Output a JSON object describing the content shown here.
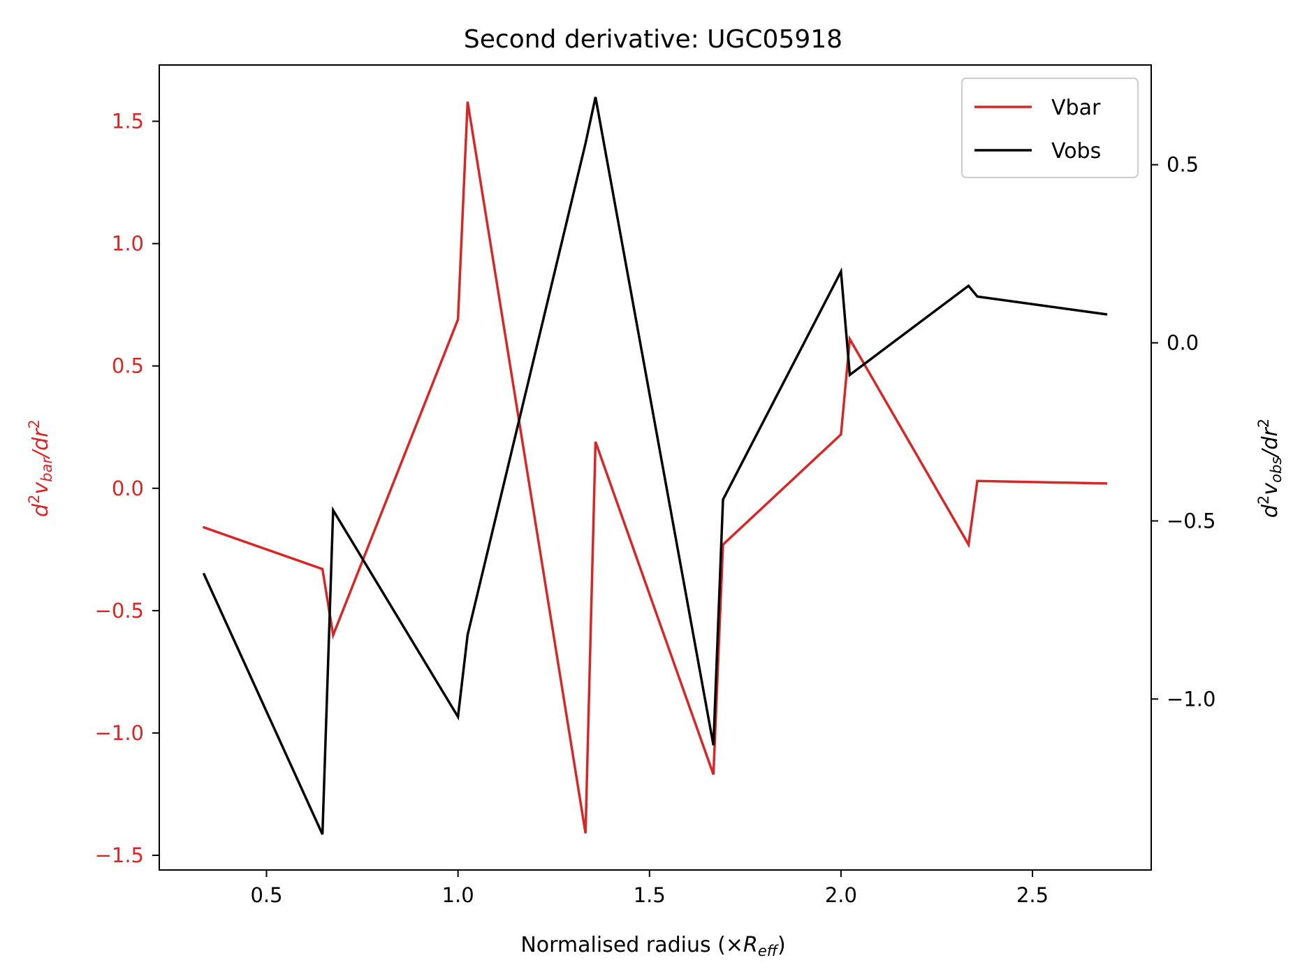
{
  "chart_data": {
    "type": "line",
    "title": "Second derivative: UGC05918",
    "xlabel": {
      "prefix": "Normalised radius (×",
      "symbol": "R",
      "subscript": "eff",
      "suffix": ")"
    },
    "ylabel_left": {
      "base": "d",
      "sup1": "2",
      "var": "v",
      "sub": "bar",
      "tail": "/dr",
      "sup2": "2"
    },
    "ylabel_right": {
      "base": "d",
      "sup1": "2",
      "var": "v",
      "sub": "obs",
      "tail": "/dr",
      "sup2": "2"
    },
    "xlim": [
      0.22,
      2.81
    ],
    "ylim_left": [
      -1.56,
      1.73
    ],
    "ylim_right": [
      -1.48,
      0.78
    ],
    "x_ticks": [
      0.5,
      1.0,
      1.5,
      2.0,
      2.5
    ],
    "x_tick_labels": [
      "0.5",
      "1.0",
      "1.5",
      "2.0",
      "2.5"
    ],
    "y_left_ticks": [
      -1.5,
      -1.0,
      -0.5,
      0.0,
      0.5,
      1.0,
      1.5
    ],
    "y_left_tick_labels": [
      "−1.5",
      "−1.0",
      "−0.5",
      "0.0",
      "0.5",
      "1.0",
      "1.5"
    ],
    "y_right_ticks": [
      -1.0,
      -0.5,
      0.0,
      0.5
    ],
    "y_right_tick_labels": [
      "−1.0",
      "−0.5",
      "0.0",
      "0.5"
    ],
    "grid": false,
    "legend_position": "top-right",
    "series": [
      {
        "name": "Vbar",
        "axis": "left",
        "color": "#d62728",
        "x": [
          0.337,
          0.646,
          0.674,
          1.0,
          1.025,
          1.333,
          1.359,
          1.667,
          1.692,
          2.0,
          2.023,
          2.333,
          2.356,
          2.692
        ],
        "y": [
          -0.16,
          -0.33,
          -0.6,
          0.69,
          1.58,
          -1.41,
          0.19,
          -1.17,
          -0.23,
          0.22,
          0.61,
          -0.23,
          0.03,
          0.02
        ]
      },
      {
        "name": "Vobs",
        "axis": "right",
        "color": "#000000",
        "x": [
          0.337,
          0.646,
          0.674,
          1.0,
          1.025,
          1.333,
          1.359,
          1.667,
          1.692,
          2.0,
          2.023,
          2.333,
          2.356,
          2.692
        ],
        "y": [
          -0.65,
          -1.38,
          -0.47,
          -1.05,
          -0.82,
          0.56,
          0.69,
          -1.13,
          -0.44,
          0.2,
          -0.09,
          0.16,
          0.13,
          0.08
        ]
      }
    ]
  }
}
